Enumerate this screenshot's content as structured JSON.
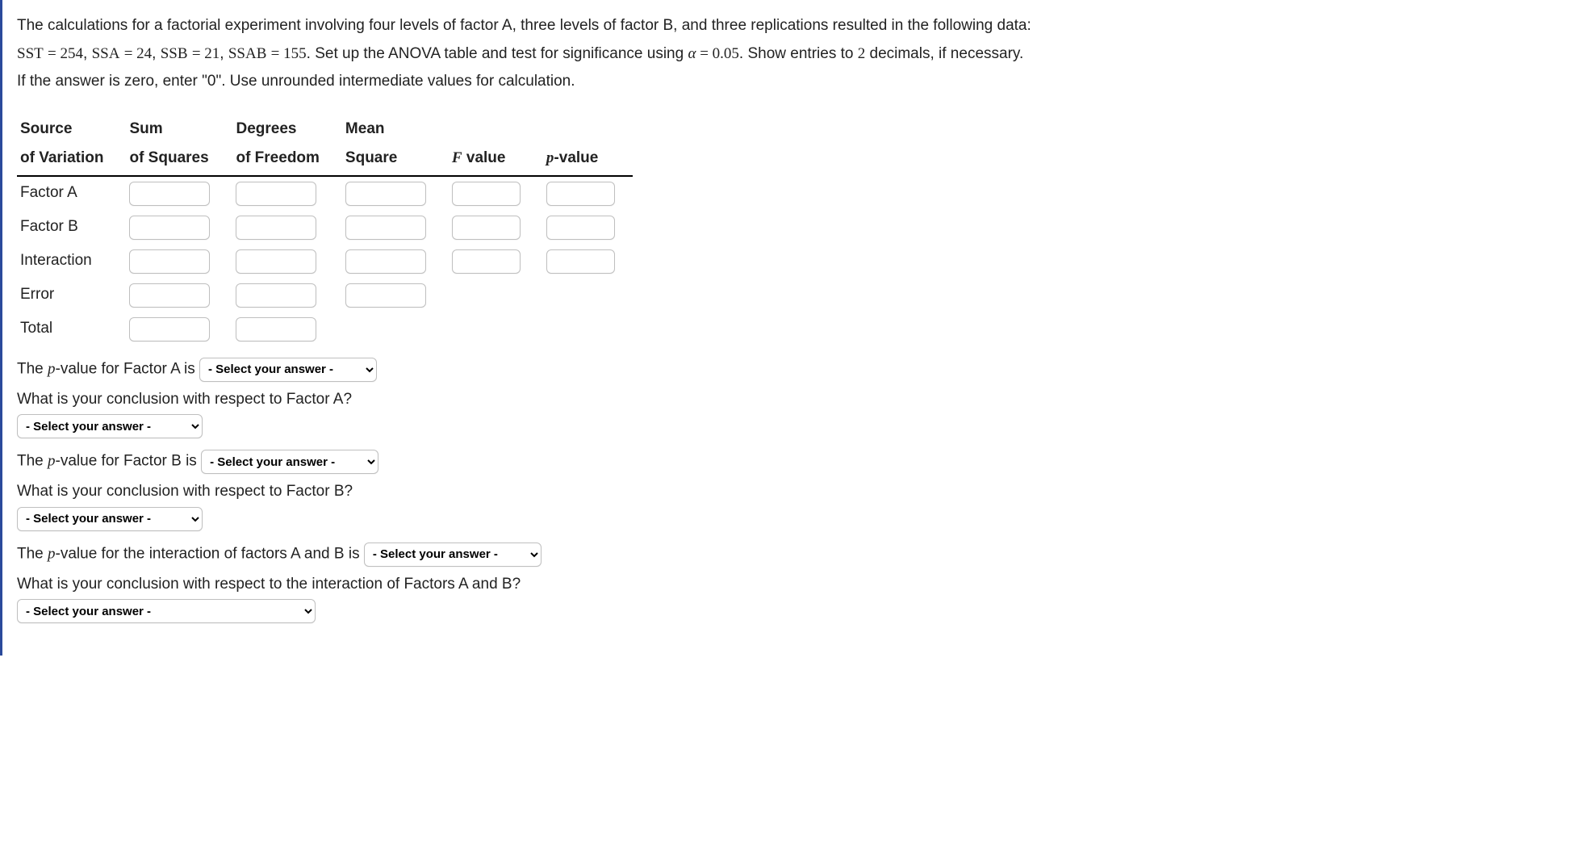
{
  "question": {
    "line1_pre": "The calculations for a factorial experiment involving four levels of factor A, three levels of factor B, and three replications resulted in the following data:",
    "sst_label": "SST",
    "sst_val": "254",
    "ssa_label": "SSA",
    "ssa_val": "24",
    "ssb_label": "SSB",
    "ssb_val": "21",
    "ssab_label": "SSAB",
    "ssab_val": "155",
    "mid_text": ". Set up the ANOVA table and test for significance using ",
    "alpha_sym": "α",
    "alpha_val": "0.05",
    "tail_text": ". Show entries to ",
    "two": "2",
    "tail_text2": " decimals, if necessary.",
    "line3": "If the answer is zero, enter \"0\". Use unrounded intermediate values for calculation."
  },
  "table": {
    "headers": {
      "source_l1": "Source",
      "source_l2": "of Variation",
      "ss_l1": "Sum",
      "ss_l2": "of Squares",
      "df_l1": "Degrees",
      "df_l2": "of Freedom",
      "ms_l1": "Mean",
      "ms_l2": "Square",
      "f_l2": "F value",
      "p_l2": "p-value"
    },
    "rows": {
      "factorA": "Factor A",
      "factorB": "Factor B",
      "interaction": "Interaction",
      "error": "Error",
      "total": "Total"
    }
  },
  "prompts": {
    "pA_pre": "The ",
    "pA_var": "p",
    "pA_post": "-value for Factor A is",
    "concA": "What is your conclusion with respect to Factor A?",
    "pB_pre": "The ",
    "pB_var": "p",
    "pB_post": "-value for Factor B is",
    "concB": "What is your conclusion with respect to Factor B?",
    "pAB_pre": "The ",
    "pAB_var": "p",
    "pAB_post": "-value for the interaction of factors A and B is",
    "concAB": "What is your conclusion with respect to the interaction of Factors A and B?"
  },
  "select_placeholder": "- Select your answer -"
}
